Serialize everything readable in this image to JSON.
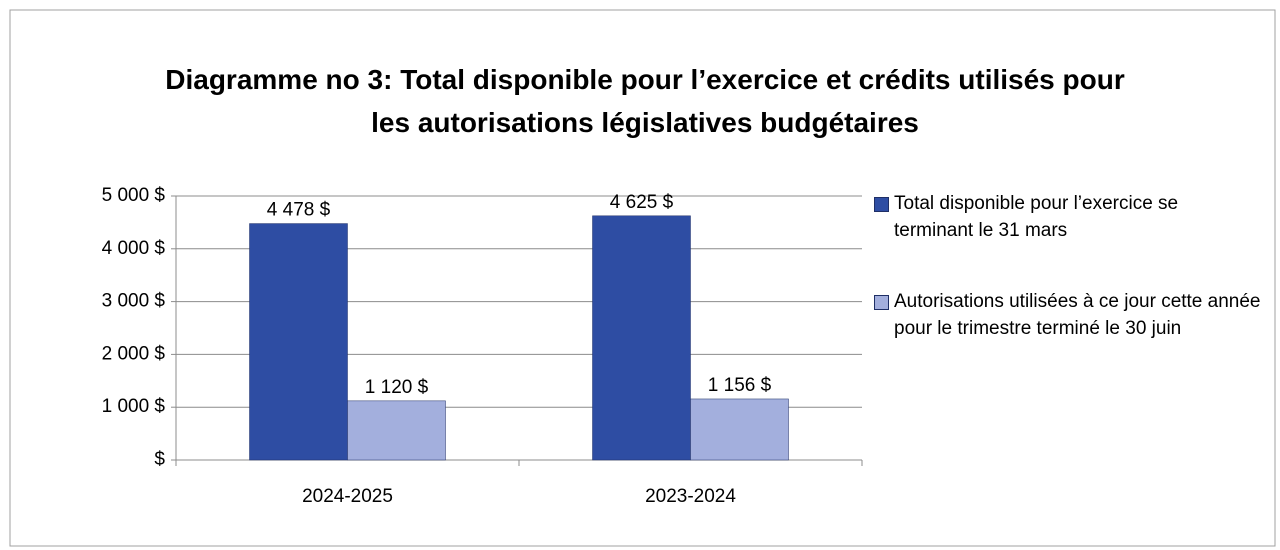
{
  "chart_data": {
    "type": "bar",
    "title": "Diagramme no 3: Total disponible pour l’exercice et crédits utilisés pour les autorisations législatives budgétaires",
    "categories": [
      "2024-2025",
      "2023-2024"
    ],
    "series": [
      {
        "name": "Total disponible pour l’exercice se terminant le 31 mars",
        "color": "#2e4da3",
        "values": [
          4478,
          4625
        ],
        "value_labels": [
          "4 478 $",
          "4 625 $"
        ]
      },
      {
        "name": "Autorisations utilisées à ce jour cette année pour le trimestre terminé le 30 juin",
        "color": "#a3afdd",
        "values": [
          1120,
          1156
        ],
        "value_labels": [
          "1 120 $",
          "1 156 $"
        ]
      }
    ],
    "ylim": [
      0,
      5000
    ],
    "yticks": [
      {
        "value": 0,
        "label": "$"
      },
      {
        "value": 1000,
        "label": "1 000 $"
      },
      {
        "value": 2000,
        "label": "2 000 $"
      },
      {
        "value": 3000,
        "label": "3 000 $"
      },
      {
        "value": 4000,
        "label": "4 000 $"
      },
      {
        "value": 5000,
        "label": "5 000 $"
      }
    ],
    "grid": true,
    "legend": "right"
  }
}
